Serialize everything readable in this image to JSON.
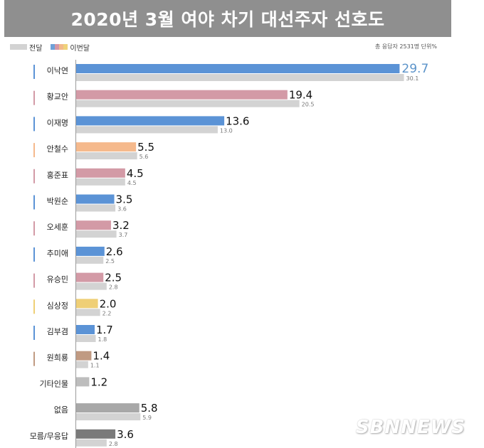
{
  "title": "2020년 3월 여야 차기 대선주자 선호도",
  "legend": {
    "prev_label": "전달",
    "now_label": "이번달"
  },
  "note": "총 응답자 2531명  단위%",
  "watermark": "SBNNEWS",
  "colors": {
    "title_bg": "#8f8f8f",
    "prev_bar": "#d3d3d3",
    "legend_now": [
      "#6fa1d8",
      "#d497a6",
      "#f2b98b",
      "#efd27a"
    ]
  },
  "chart_data": {
    "type": "bar",
    "orientation": "horizontal",
    "title": "2020년 3월 여야 차기 대선주자 선호도",
    "categories": [
      "이낙연",
      "황교안",
      "이재명",
      "안철수",
      "홍준표",
      "박원순",
      "오세훈",
      "추미애",
      "유승민",
      "심상정",
      "김부겸",
      "원희룡",
      "기타인물",
      "없음",
      "모름/무응답"
    ],
    "series": [
      {
        "name": "이번달",
        "values": [
          29.7,
          19.4,
          13.6,
          5.5,
          4.5,
          3.5,
          3.2,
          2.6,
          2.5,
          2.0,
          1.7,
          1.4,
          1.2,
          5.8,
          3.6
        ],
        "colors": [
          "#5b93d6",
          "#d39aa6",
          "#5b93d6",
          "#f5b98c",
          "#d39aa6",
          "#5b93d6",
          "#d39aa6",
          "#5b93d6",
          "#d39aa6",
          "#efcf76",
          "#5b93d6",
          "#c09a82",
          "#bdbdbd",
          "#a8a8a8",
          "#7a7a7a"
        ]
      },
      {
        "name": "전달",
        "values": [
          30.1,
          20.5,
          13.0,
          5.6,
          4.5,
          3.6,
          3.7,
          2.5,
          2.8,
          2.2,
          1.8,
          1.1,
          null,
          5.9,
          2.8
        ],
        "labels": [
          "30.1",
          "20.5",
          "13.0",
          "5.6",
          "4.5",
          "3.6",
          "3.7",
          "2.5",
          "2.8",
          "2.2",
          "1.8",
          "1.1",
          "",
          "5.9",
          "2.8"
        ]
      }
    ],
    "now_labels": [
      "29.7",
      "19.4",
      "13.6",
      "5.5",
      "4.5",
      "3.5",
      "3.2",
      "2.6",
      "2.5",
      "2.0",
      "1.7",
      "1.4",
      "1.2",
      "5.8",
      "3.6"
    ],
    "marker_colors": [
      "#5b93d6",
      "#d39aa6",
      "#5b93d6",
      "#f5b98c",
      "#d39aa6",
      "#5b93d6",
      "#d39aa6",
      "#5b93d6",
      "#d39aa6",
      "#efcf76",
      "#5b93d6",
      "#c09a82",
      null,
      null,
      null
    ],
    "xlim": [
      0,
      30.5
    ],
    "unit": "%",
    "legend_position": "top-left"
  }
}
